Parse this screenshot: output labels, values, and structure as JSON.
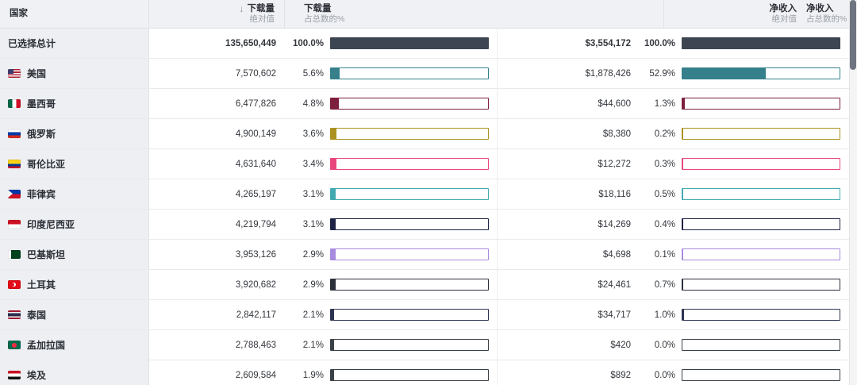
{
  "header": {
    "country": "国家",
    "sort_icon": "↓",
    "downloads_abs_title": "下载量",
    "downloads_abs_sub": "绝对值",
    "downloads_pct_title": "下载量",
    "downloads_pct_sub": "占总数的%",
    "revenue_abs_title": "净收入",
    "revenue_abs_sub": "绝对值",
    "revenue_pct_title": "净收入",
    "revenue_pct_sub": "占总数的%"
  },
  "table": {
    "rows": [
      {
        "total": true,
        "flag": null,
        "country": "已选择总计",
        "downloads": "135,650,449",
        "downloads_pct": "100.0%",
        "downloads_pct_value": 100,
        "revenue": "$3,554,172",
        "revenue_pct": "100.0%",
        "revenue_pct_value": 100,
        "color": "#3e4552"
      },
      {
        "total": false,
        "flag": "us",
        "country": "美国",
        "downloads": "7,570,602",
        "downloads_pct": "5.6%",
        "downloads_pct_value": 5.6,
        "revenue": "$1,878,426",
        "revenue_pct": "52.9%",
        "revenue_pct_value": 52.9,
        "color": "#35808a"
      },
      {
        "total": false,
        "flag": "mx",
        "country": "墨西哥",
        "downloads": "6,477,826",
        "downloads_pct": "4.8%",
        "downloads_pct_value": 4.8,
        "revenue": "$44,600",
        "revenue_pct": "1.3%",
        "revenue_pct_value": 1.3,
        "color": "#7d1f3d"
      },
      {
        "total": false,
        "flag": "ru",
        "country": "俄罗斯",
        "downloads": "4,900,149",
        "downloads_pct": "3.6%",
        "downloads_pct_value": 3.6,
        "revenue": "$8,380",
        "revenue_pct": "0.2%",
        "revenue_pct_value": 0.2,
        "color": "#ab9220"
      },
      {
        "total": false,
        "flag": "co",
        "country": "哥伦比亚",
        "downloads": "4,631,640",
        "downloads_pct": "3.4%",
        "downloads_pct_value": 3.4,
        "revenue": "$12,272",
        "revenue_pct": "0.3%",
        "revenue_pct_value": 0.3,
        "color": "#e8477d"
      },
      {
        "total": false,
        "flag": "ph",
        "country": "菲律宾",
        "downloads": "4,265,197",
        "downloads_pct": "3.1%",
        "downloads_pct_value": 3.1,
        "revenue": "$18,116",
        "revenue_pct": "0.5%",
        "revenue_pct_value": 0.5,
        "color": "#43a9b1"
      },
      {
        "total": false,
        "flag": "id",
        "country": "印度尼西亚",
        "downloads": "4,219,794",
        "downloads_pct": "3.1%",
        "downloads_pct_value": 3.1,
        "revenue": "$14,269",
        "revenue_pct": "0.4%",
        "revenue_pct_value": 0.4,
        "color": "#1d2344"
      },
      {
        "total": false,
        "flag": "pk",
        "country": "巴基斯坦",
        "downloads": "3,953,126",
        "downloads_pct": "2.9%",
        "downloads_pct_value": 2.9,
        "revenue": "$4,698",
        "revenue_pct": "0.1%",
        "revenue_pct_value": 0.1,
        "color": "#a78bdd"
      },
      {
        "total": false,
        "flag": "tr",
        "country": "土耳其",
        "downloads": "3,920,682",
        "downloads_pct": "2.9%",
        "downloads_pct_value": 2.9,
        "revenue": "$24,461",
        "revenue_pct": "0.7%",
        "revenue_pct_value": 0.7,
        "color": "#2b303b"
      },
      {
        "total": false,
        "flag": "th",
        "country": "泰国",
        "downloads": "2,842,117",
        "downloads_pct": "2.1%",
        "downloads_pct_value": 2.1,
        "revenue": "$34,717",
        "revenue_pct": "1.0%",
        "revenue_pct_value": 1.0,
        "color": "#2e3450"
      },
      {
        "total": false,
        "flag": "bd",
        "country": "孟加拉国",
        "downloads": "2,788,463",
        "downloads_pct": "2.1%",
        "downloads_pct_value": 2.1,
        "revenue": "$420",
        "revenue_pct": "0.0%",
        "revenue_pct_value": 0,
        "color": "#3a4147"
      },
      {
        "total": false,
        "flag": "eg",
        "country": "埃及",
        "downloads": "2,609,584",
        "downloads_pct": "1.9%",
        "downloads_pct_value": 1.9,
        "revenue": "$892",
        "revenue_pct": "0.0%",
        "revenue_pct_value": 0,
        "color": "#3a4147"
      }
    ]
  }
}
